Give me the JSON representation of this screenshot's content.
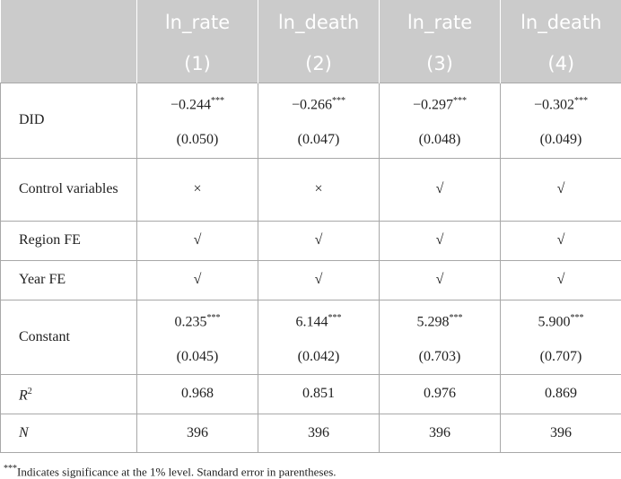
{
  "table": {
    "columns": [
      {
        "name": "ln_rate",
        "number": "(1)"
      },
      {
        "name": "ln_death",
        "number": "(2)"
      },
      {
        "name": "ln_rate",
        "number": "(3)"
      },
      {
        "name": "ln_death",
        "number": "(4)"
      }
    ],
    "rows": [
      {
        "label": "DID",
        "cells": [
          {
            "coef": "−0.244",
            "stars": "***",
            "se": "(0.050)"
          },
          {
            "coef": "−0.266",
            "stars": "***",
            "se": "(0.047)"
          },
          {
            "coef": "−0.297",
            "stars": "***",
            "se": "(0.048)"
          },
          {
            "coef": "−0.302",
            "stars": "***",
            "se": "(0.049)"
          }
        ]
      },
      {
        "label": "Control variables",
        "cells": [
          "×",
          "×",
          "√",
          "√"
        ]
      },
      {
        "label": "Region FE",
        "cells": [
          "√",
          "√",
          "√",
          "√"
        ]
      },
      {
        "label": "Year FE",
        "cells": [
          "√",
          "√",
          "√",
          "√"
        ]
      },
      {
        "label": "Constant",
        "cells": [
          {
            "coef": "0.235",
            "stars": "***",
            "se": "(0.045)"
          },
          {
            "coef": "6.144",
            "stars": "***",
            "se": "(0.042)"
          },
          {
            "coef": "5.298",
            "stars": "***",
            "se": "(0.703)"
          },
          {
            "coef": "5.900",
            "stars": "***",
            "se": "(0.707)"
          }
        ]
      },
      {
        "label": {
          "text": "R",
          "sup": "2"
        },
        "cells": [
          "0.968",
          "0.851",
          "0.976",
          "0.869"
        ]
      },
      {
        "label": {
          "text": "N"
        },
        "cells": [
          "396",
          "396",
          "396",
          "396"
        ]
      }
    ]
  },
  "footnote": {
    "marker": "***",
    "text": "Indicates significance at the 1% level. Standard error in parentheses."
  }
}
